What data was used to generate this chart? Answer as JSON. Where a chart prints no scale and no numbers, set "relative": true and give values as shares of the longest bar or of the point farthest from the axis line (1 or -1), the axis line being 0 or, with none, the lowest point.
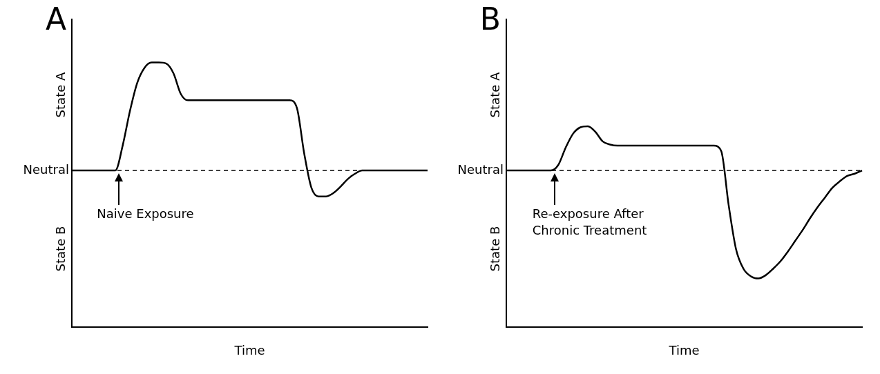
{
  "chart_data": [
    {
      "type": "line",
      "title": "A",
      "xlabel": "Time",
      "relative": true,
      "grid": false,
      "legend": false,
      "marker": "none",
      "line_style": "solid",
      "categories": [
        null,
        null,
        null,
        null,
        null,
        null,
        null,
        null,
        null,
        null,
        null,
        null,
        null,
        null,
        null,
        null,
        null,
        null,
        null,
        null,
        null,
        null,
        null,
        null,
        null,
        null,
        null,
        null,
        null,
        null,
        null,
        null,
        null,
        null,
        null,
        null,
        null,
        null,
        null,
        null,
        null,
        null,
        null,
        null,
        null,
        null,
        null,
        null,
        null,
        null
      ],
      "series": [
        {
          "color": "#000000",
          "values": [
            0,
            0,
            0,
            0,
            0,
            0,
            0,
            0.23,
            0.55,
            0.81,
            0.95,
            1,
            1,
            0.99,
            0.9,
            0.71,
            0.65,
            0.65,
            0.65,
            0.65,
            0.65,
            0.65,
            0.65,
            0.65,
            0.65,
            0.65,
            0.65,
            0.65,
            0.65,
            0.65,
            0.65,
            0.58,
            0.16,
            -0.16,
            -0.24,
            -0.24,
            -0.21,
            -0.15,
            -0.08,
            -0.03,
            0,
            0,
            0,
            0,
            0,
            0,
            0,
            0,
            0,
            0
          ]
        }
      ],
      "ref_lines": [
        {
          "axis": "y",
          "value": 0,
          "label": "Neutral",
          "line_style": "dashed",
          "color": "#000000"
        }
      ],
      "annotations": [
        "State A",
        "State B",
        "Naive Exposure"
      ]
    },
    {
      "type": "line",
      "title": "B",
      "xlabel": "Time",
      "relative": true,
      "grid": false,
      "legend": false,
      "marker": "none",
      "line_style": "solid",
      "categories": [
        null,
        null,
        null,
        null,
        null,
        null,
        null,
        null,
        null,
        null,
        null,
        null,
        null,
        null,
        null,
        null,
        null,
        null,
        null,
        null,
        null,
        null,
        null,
        null,
        null,
        null,
        null,
        null,
        null,
        null,
        null,
        null,
        null,
        null,
        null,
        null,
        null,
        null,
        null,
        null,
        null,
        null,
        null,
        null,
        null,
        null,
        null,
        null,
        null
      ],
      "series": [
        {
          "color": "#000000",
          "values": [
            0,
            0,
            0,
            0,
            0,
            0,
            0,
            0.05,
            0.21,
            0.34,
            0.4,
            0.41,
            0.36,
            0.27,
            0.24,
            0.23,
            0.23,
            0.23,
            0.23,
            0.23,
            0.23,
            0.23,
            0.23,
            0.23,
            0.23,
            0.23,
            0.23,
            0.23,
            0.23,
            0.18,
            -0.32,
            -0.73,
            -0.91,
            -0.98,
            -1,
            -0.97,
            -0.91,
            -0.84,
            -0.75,
            -0.65,
            -0.55,
            -0.44,
            -0.34,
            -0.25,
            -0.16,
            -0.1,
            -0.05,
            -0.03,
            0
          ]
        }
      ],
      "ref_lines": [
        {
          "axis": "y",
          "value": 0,
          "label": "Neutral",
          "line_style": "dashed",
          "color": "#000000"
        }
      ],
      "annotations": [
        "State A",
        "State B",
        "Re-exposure After Chronic Treatment"
      ]
    }
  ]
}
